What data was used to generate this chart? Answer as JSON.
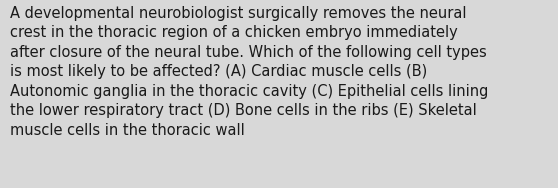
{
  "lines": [
    "A developmental neurobiologist surgically removes the neural",
    "crest in the thoracic region of a chicken embryo immediately",
    "after closure of the neural tube. Which of the following cell types",
    "is most likely to be affected? (A) Cardiac muscle cells (B)",
    "Autonomic ganglia in the thoracic cavity (C) Epithelial cells lining",
    "the lower respiratory tract (D) Bone cells in the ribs (E) Skeletal",
    "muscle cells in the thoracic wall"
  ],
  "background_color": "#d8d8d8",
  "text_color": "#1a1a1a",
  "font_size": 10.5,
  "fig_width": 5.58,
  "fig_height": 1.88,
  "dpi": 100
}
